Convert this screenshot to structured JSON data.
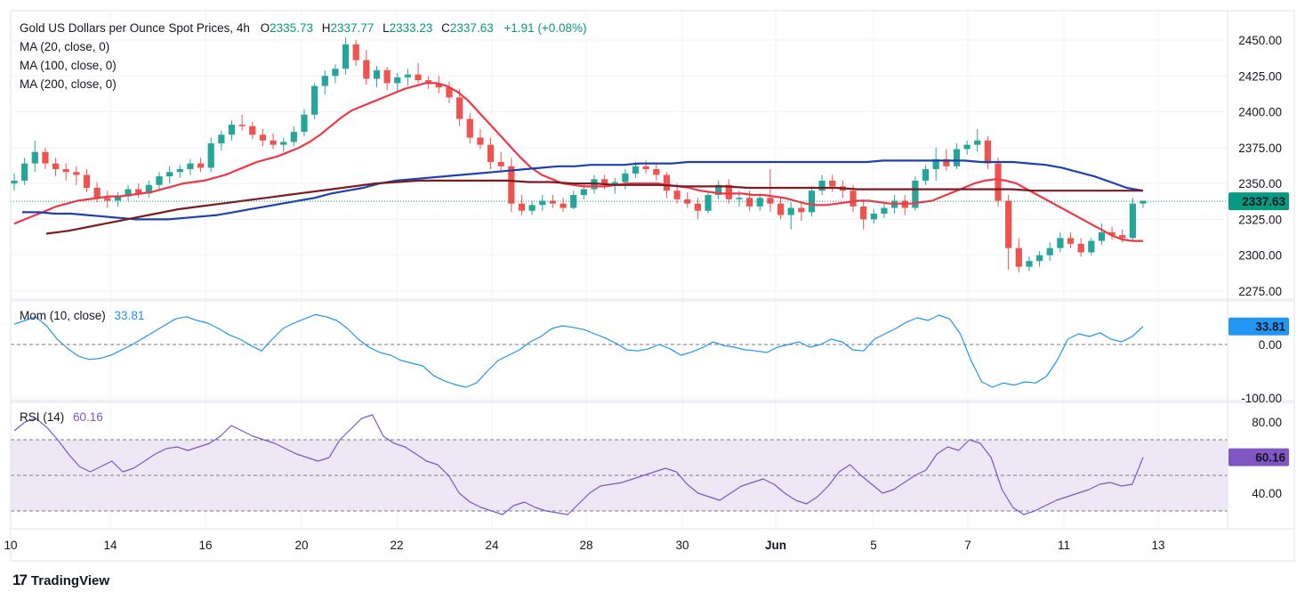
{
  "header": {
    "title": "Gold US Dollars per Ounce Spot Prices, 4h",
    "open_label": "O",
    "open": "2335.73",
    "high_label": "H",
    "high": "2337.77",
    "low_label": "L",
    "low": "2333.23",
    "close_label": "C",
    "close": "2337.63",
    "change": "+1.91 (+0.08%)",
    "ma20": "MA (20, close, 0)",
    "ma100": "MA (100, close, 0)",
    "ma200": "MA (200, close, 0)"
  },
  "momentum_panel": {
    "label": "Mom (10, close)",
    "value": "33.81"
  },
  "rsi_panel": {
    "label": "RSI (14)",
    "value": "60.16"
  },
  "branding": {
    "name": "TradingView"
  },
  "colors": {
    "up": "#26a69a",
    "down": "#ef5350",
    "ma20": "#f23645",
    "ma100": "#1e40af",
    "ma200": "#7b1c20",
    "momentum": "#2196f3",
    "rsi": "#7e57c2",
    "rsi_band": "#ede7f6",
    "price_tag": "#089981"
  },
  "chart_data": [
    {
      "type": "candlestick",
      "title": "Gold US Dollars per Ounce Spot Prices, 4h",
      "ylim": [
        2268,
        2452
      ],
      "y_ticks": [
        "2450.00",
        "2425.00",
        "2400.00",
        "2375.00",
        "2350.00",
        "2325.00",
        "2300.00",
        "2275.00"
      ],
      "x_ticks": [
        "10",
        "14",
        "16",
        "20",
        "22",
        "24",
        "28",
        "30",
        "Jun",
        "5",
        "7",
        "11",
        "13"
      ],
      "last_price": "2337.63",
      "candles": [
        [
          2350,
          2357,
          2345,
          2352
        ],
        [
          2352,
          2368,
          2349,
          2364
        ],
        [
          2364,
          2380,
          2358,
          2372
        ],
        [
          2372,
          2375,
          2360,
          2364
        ],
        [
          2364,
          2368,
          2355,
          2360
        ],
        [
          2360,
          2364,
          2352,
          2358
        ],
        [
          2358,
          2362,
          2349,
          2356
        ],
        [
          2356,
          2360,
          2344,
          2347
        ],
        [
          2347,
          2351,
          2337,
          2340
        ],
        [
          2340,
          2345,
          2333,
          2338
        ],
        [
          2338,
          2344,
          2334,
          2341
        ],
        [
          2341,
          2349,
          2338,
          2346
        ],
        [
          2346,
          2350,
          2340,
          2343
        ],
        [
          2343,
          2352,
          2340,
          2349
        ],
        [
          2349,
          2358,
          2346,
          2355
        ],
        [
          2355,
          2362,
          2350,
          2358
        ],
        [
          2358,
          2363,
          2354,
          2360
        ],
        [
          2360,
          2367,
          2356,
          2364
        ],
        [
          2364,
          2368,
          2358,
          2361
        ],
        [
          2361,
          2382,
          2358,
          2378
        ],
        [
          2378,
          2387,
          2373,
          2384
        ],
        [
          2384,
          2394,
          2380,
          2391
        ],
        [
          2391,
          2398,
          2387,
          2390
        ],
        [
          2390,
          2393,
          2381,
          2384
        ],
        [
          2384,
          2388,
          2376,
          2380
        ],
        [
          2380,
          2385,
          2374,
          2377
        ],
        [
          2377,
          2382,
          2372,
          2379
        ],
        [
          2379,
          2390,
          2376,
          2386
        ],
        [
          2386,
          2402,
          2383,
          2398
        ],
        [
          2398,
          2420,
          2395,
          2418
        ],
        [
          2418,
          2429,
          2412,
          2425
        ],
        [
          2425,
          2433,
          2420,
          2430
        ],
        [
          2430,
          2452,
          2426,
          2447
        ],
        [
          2447,
          2450,
          2432,
          2436
        ],
        [
          2436,
          2443,
          2419,
          2423
        ],
        [
          2423,
          2432,
          2417,
          2429
        ],
        [
          2429,
          2431,
          2415,
          2420
        ],
        [
          2420,
          2427,
          2413,
          2424
        ],
        [
          2424,
          2430,
          2418,
          2426
        ],
        [
          2426,
          2434,
          2420,
          2422
        ],
        [
          2422,
          2425,
          2416,
          2420
        ],
        [
          2420,
          2425,
          2413,
          2417
        ],
        [
          2417,
          2421,
          2406,
          2410
        ],
        [
          2410,
          2416,
          2390,
          2395
        ],
        [
          2395,
          2399,
          2378,
          2382
        ],
        [
          2382,
          2388,
          2374,
          2377
        ],
        [
          2377,
          2382,
          2360,
          2365
        ],
        [
          2365,
          2372,
          2358,
          2362
        ],
        [
          2362,
          2368,
          2330,
          2336
        ],
        [
          2336,
          2342,
          2328,
          2331
        ],
        [
          2331,
          2338,
          2328,
          2335
        ],
        [
          2335,
          2342,
          2331,
          2338
        ],
        [
          2338,
          2342,
          2333,
          2336
        ],
        [
          2336,
          2340,
          2330,
          2333
        ],
        [
          2333,
          2345,
          2332,
          2342
        ],
        [
          2342,
          2350,
          2339,
          2346
        ],
        [
          2346,
          2356,
          2343,
          2353
        ],
        [
          2353,
          2356,
          2346,
          2349
        ],
        [
          2349,
          2354,
          2343,
          2351
        ],
        [
          2351,
          2360,
          2346,
          2357
        ],
        [
          2357,
          2365,
          2354,
          2362
        ],
        [
          2362,
          2366,
          2357,
          2360
        ],
        [
          2360,
          2364,
          2352,
          2356
        ],
        [
          2356,
          2358,
          2340,
          2345
        ],
        [
          2345,
          2350,
          2336,
          2339
        ],
        [
          2339,
          2344,
          2333,
          2336
        ],
        [
          2336,
          2340,
          2325,
          2331
        ],
        [
          2331,
          2345,
          2329,
          2342
        ],
        [
          2342,
          2352,
          2339,
          2349
        ],
        [
          2349,
          2353,
          2336,
          2339
        ],
        [
          2339,
          2345,
          2334,
          2340
        ],
        [
          2340,
          2345,
          2331,
          2334
        ],
        [
          2334,
          2343,
          2331,
          2340
        ],
        [
          2340,
          2360,
          2330,
          2336
        ],
        [
          2336,
          2340,
          2325,
          2328
        ],
        [
          2328,
          2337,
          2318,
          2333
        ],
        [
          2333,
          2337,
          2324,
          2330
        ],
        [
          2330,
          2348,
          2327,
          2345
        ],
        [
          2345,
          2356,
          2342,
          2352
        ],
        [
          2352,
          2356,
          2344,
          2348
        ],
        [
          2348,
          2352,
          2340,
          2345
        ],
        [
          2345,
          2349,
          2330,
          2334
        ],
        [
          2334,
          2339,
          2318,
          2325
        ],
        [
          2325,
          2332,
          2322,
          2329
        ],
        [
          2329,
          2336,
          2326,
          2333
        ],
        [
          2333,
          2342,
          2329,
          2338
        ],
        [
          2338,
          2342,
          2328,
          2333
        ],
        [
          2333,
          2355,
          2331,
          2352
        ],
        [
          2352,
          2363,
          2349,
          2360
        ],
        [
          2360,
          2375,
          2352,
          2367
        ],
        [
          2367,
          2374,
          2359,
          2362
        ],
        [
          2362,
          2378,
          2360,
          2374
        ],
        [
          2374,
          2380,
          2370,
          2377
        ],
        [
          2377,
          2388,
          2372,
          2380
        ],
        [
          2380,
          2383,
          2360,
          2364
        ],
        [
          2364,
          2368,
          2334,
          2338
        ],
        [
          2338,
          2342,
          2290,
          2305
        ],
        [
          2305,
          2312,
          2288,
          2292
        ],
        [
          2292,
          2299,
          2289,
          2296
        ],
        [
          2296,
          2303,
          2292,
          2300
        ],
        [
          2300,
          2309,
          2296,
          2305
        ],
        [
          2305,
          2316,
          2302,
          2312
        ],
        [
          2312,
          2316,
          2305,
          2308
        ],
        [
          2308,
          2312,
          2299,
          2302
        ],
        [
          2302,
          2312,
          2300,
          2310
        ],
        [
          2310,
          2322,
          2307,
          2316
        ],
        [
          2316,
          2320,
          2311,
          2314
        ],
        [
          2314,
          2318,
          2309,
          2312
        ],
        [
          2312,
          2340,
          2310,
          2336
        ],
        [
          2336,
          2338,
          2333,
          2338
        ]
      ],
      "series": [
        {
          "name": "MA (20, close, 0)",
          "values": [
            2322,
            2325,
            2328,
            2331,
            2334,
            2336,
            2338,
            2339,
            2340,
            2341,
            2341,
            2342,
            2343,
            2344,
            2346,
            2348,
            2350,
            2351,
            2352,
            2354,
            2356,
            2359,
            2362,
            2365,
            2367,
            2369,
            2372,
            2375,
            2379,
            2384,
            2390,
            2396,
            2401,
            2404,
            2407,
            2410,
            2413,
            2416,
            2418,
            2420,
            2420,
            2418,
            2414,
            2408,
            2400,
            2392,
            2384,
            2376,
            2368,
            2361,
            2356,
            2353,
            2350,
            2349,
            2348,
            2348,
            2348,
            2349,
            2350,
            2350,
            2350,
            2350,
            2349,
            2348,
            2347,
            2345,
            2344,
            2343,
            2343,
            2343,
            2342,
            2342,
            2341,
            2340,
            2338,
            2336,
            2335,
            2335,
            2336,
            2337,
            2338,
            2338,
            2337,
            2336,
            2336,
            2336,
            2337,
            2338,
            2341,
            2344,
            2347,
            2350,
            2352,
            2353,
            2352,
            2350,
            2346,
            2342,
            2338,
            2334,
            2330,
            2326,
            2322,
            2318,
            2314,
            2311,
            2310,
            2310
          ]
        },
        {
          "name": "MA (100, close, 0)",
          "values": [
            2330,
            2330,
            2329,
            2329,
            2328,
            2327,
            2326,
            2325,
            2325,
            2325,
            2326,
            2327,
            2328,
            2330,
            2332,
            2334,
            2336,
            2338,
            2340,
            2343,
            2345,
            2347,
            2350,
            2352,
            2353,
            2354,
            2355,
            2356,
            2357,
            2358,
            2359,
            2360,
            2361,
            2362,
            2362,
            2363,
            2363,
            2363,
            2364,
            2364,
            2364,
            2365,
            2365,
            2365,
            2365,
            2365,
            2365,
            2365,
            2365,
            2365,
            2365,
            2365,
            2365,
            2366,
            2366,
            2366,
            2366,
            2366,
            2366,
            2365,
            2365,
            2365,
            2364,
            2363,
            2361,
            2358,
            2355,
            2351,
            2347,
            2345
          ]
        },
        {
          "name": "MA (200, close, 0)",
          "values": [
            2315,
            2317,
            2320,
            2323,
            2326,
            2329,
            2332,
            2334,
            2336,
            2338,
            2340,
            2342,
            2344,
            2346,
            2348,
            2350,
            2351,
            2352,
            2352,
            2352,
            2352,
            2352,
            2351,
            2351,
            2350,
            2350,
            2349,
            2349,
            2349,
            2348,
            2348,
            2348,
            2347,
            2347,
            2347,
            2347,
            2347,
            2346,
            2346,
            2346,
            2346,
            2346,
            2346,
            2346,
            2346,
            2345,
            2345,
            2345,
            2345,
            2345,
            2345
          ]
        }
      ]
    },
    {
      "type": "line",
      "title": "Mom (10, close)",
      "ylim": [
        -100,
        62
      ],
      "y_ticks": [
        "0.00",
        "-100.00"
      ],
      "last_value": "33.81",
      "series": [
        {
          "name": "Mom (10, close)",
          "values": [
            38,
            45,
            52,
            35,
            10,
            -8,
            -22,
            -28,
            -26,
            -20,
            -10,
            0,
            12,
            24,
            36,
            48,
            52,
            45,
            40,
            30,
            18,
            10,
            -2,
            -12,
            10,
            30,
            40,
            48,
            56,
            52,
            45,
            30,
            10,
            -5,
            -15,
            -20,
            -30,
            -35,
            -40,
            -58,
            -68,
            -75,
            -80,
            -72,
            -50,
            -30,
            -20,
            -10,
            5,
            15,
            30,
            35,
            32,
            28,
            20,
            12,
            2,
            -10,
            -12,
            -8,
            0,
            -8,
            -20,
            -14,
            -6,
            5,
            -2,
            -5,
            -10,
            -12,
            -15,
            -5,
            0,
            5,
            -5,
            0,
            10,
            5,
            -10,
            -12,
            10,
            20,
            30,
            42,
            50,
            45,
            55,
            48,
            20,
            -30,
            -70,
            -80,
            -72,
            -76,
            -70,
            -72,
            -60,
            -30,
            10,
            20,
            15,
            22,
            10,
            5,
            15,
            33.81
          ]
        }
      ]
    },
    {
      "type": "line",
      "title": "RSI (14)",
      "ylim": [
        24,
        86
      ],
      "y_ticks": [
        "80.00",
        "40.00"
      ],
      "band": [
        30,
        70
      ],
      "mid": 50,
      "last_value": "60.16",
      "series": [
        {
          "name": "RSI (14)",
          "values": [
            75,
            80,
            82,
            77,
            70,
            62,
            55,
            52,
            55,
            58,
            52,
            54,
            58,
            62,
            65,
            66,
            64,
            66,
            68,
            72,
            78,
            75,
            72,
            70,
            68,
            65,
            62,
            60,
            58,
            60,
            70,
            76,
            82,
            84,
            72,
            68,
            66,
            62,
            58,
            56,
            50,
            40,
            35,
            32,
            30,
            28,
            33,
            35,
            32,
            30,
            29,
            28,
            34,
            40,
            44,
            45,
            46,
            48,
            50,
            52,
            54,
            52,
            45,
            40,
            38,
            36,
            40,
            44,
            46,
            48,
            45,
            40,
            36,
            34,
            38,
            44,
            52,
            56,
            50,
            45,
            40,
            42,
            46,
            50,
            53,
            62,
            66,
            64,
            70,
            68,
            60,
            42,
            32,
            28,
            30,
            33,
            36,
            38,
            40,
            42,
            45,
            46,
            44,
            45,
            60.16
          ]
        }
      ]
    }
  ]
}
